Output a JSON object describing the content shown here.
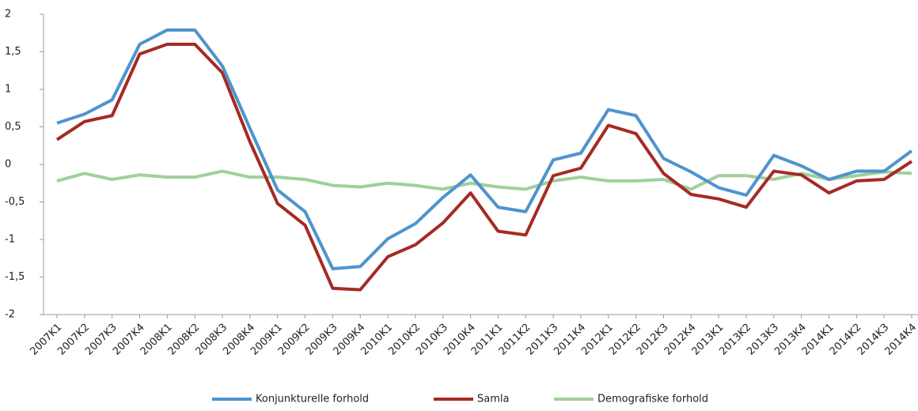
{
  "chart_data": {
    "type": "line",
    "categories": [
      "2007K1",
      "2007K2",
      "2007K3",
      "2007K4",
      "2008K1",
      "2008K2",
      "2008K3",
      "2008K4",
      "2009K1",
      "2009K2",
      "2009K3",
      "2009K4",
      "2010K1",
      "2010K2",
      "2010K3",
      "2010K4",
      "2011K1",
      "2011K2",
      "2011K3",
      "2011K4",
      "2012K1",
      "2012K2",
      "2012K3",
      "2012K4",
      "2013K1",
      "2013K2",
      "2013K3",
      "2013K4",
      "2014K1",
      "2014K2",
      "2014K3",
      "2014K4"
    ],
    "series": [
      {
        "name": "Konjunkturelle forhold",
        "color": "#4f94cd",
        "values": [
          0.55,
          0.67,
          0.86,
          1.6,
          1.79,
          1.79,
          1.31,
          0.48,
          -0.34,
          -0.63,
          -1.39,
          -1.36,
          -0.99,
          -0.79,
          -0.44,
          -0.14,
          -0.57,
          -0.63,
          0.06,
          0.15,
          0.73,
          0.65,
          0.08,
          -0.1,
          -0.31,
          -0.41,
          0.12,
          -0.02,
          -0.2,
          -0.09,
          -0.09,
          0.18
        ]
      },
      {
        "name": "Samla",
        "color": "#a52a24",
        "values": [
          0.33,
          0.57,
          0.65,
          1.47,
          1.6,
          1.6,
          1.22,
          0.3,
          -0.52,
          -0.81,
          -1.65,
          -1.67,
          -1.23,
          -1.07,
          -0.78,
          -0.38,
          -0.89,
          -0.94,
          -0.15,
          -0.05,
          0.52,
          0.41,
          -0.12,
          -0.4,
          -0.46,
          -0.57,
          -0.09,
          -0.14,
          -0.38,
          -0.22,
          -0.2,
          0.04
        ]
      },
      {
        "name": "Demografiske forhold",
        "color": "#9fd09a",
        "values": [
          -0.22,
          -0.12,
          -0.2,
          -0.14,
          -0.17,
          -0.17,
          -0.09,
          -0.17,
          -0.17,
          -0.2,
          -0.28,
          -0.3,
          -0.25,
          -0.28,
          -0.33,
          -0.25,
          -0.3,
          -0.33,
          -0.22,
          -0.17,
          -0.22,
          -0.22,
          -0.2,
          -0.33,
          -0.15,
          -0.15,
          -0.2,
          -0.12,
          -0.2,
          -0.15,
          -0.1,
          -0.12
        ]
      }
    ],
    "ylim": [
      -2,
      2
    ],
    "yticks": [
      -2,
      {
        "value": -1.5,
        "label": "-1,5"
      },
      -1,
      {
        "value": -0.5,
        "label": "-0,5"
      },
      0,
      {
        "value": 0.5,
        "label": "0,5"
      },
      1,
      {
        "value": 1.5,
        "label": "1,5"
      },
      2
    ],
    "legend": "bottom"
  }
}
